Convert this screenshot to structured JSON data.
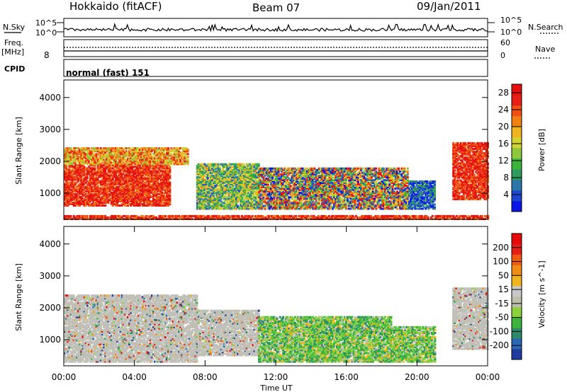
{
  "header": {
    "station": "Hokkaido (fitACF)",
    "beam": "Beam 07",
    "date": "09/Jan/2011"
  },
  "panel_labels": {
    "nsky": "N.Sky",
    "nsearch": "N.Search",
    "freq_line1": "Freq.",
    "freq_line2": "[MHz]",
    "nave": "Nave",
    "cpid": "CPID",
    "cpid_value": "normal (fast) 151"
  },
  "ticks": {
    "nsky_top": "10^5",
    "nsky_bottom": "10^0",
    "freq_left": "8",
    "nave_top": "60",
    "nave_bottom": "0"
  },
  "chart_data": [
    {
      "type": "heatmap",
      "name": "power",
      "xlabel": "",
      "ylabel": "Slant Range [km]",
      "x_range": [
        "00:00",
        "24:00"
      ],
      "ylim": [
        180,
        4550
      ],
      "y_ticks": [
        1000,
        2000,
        3000,
        4000
      ],
      "colorbar": {
        "label": "Power [dB]",
        "range": [
          0,
          30
        ],
        "ticks": [
          4,
          8,
          12,
          16,
          20,
          24,
          28
        ],
        "colors": [
          "#0a14e6",
          "#1e46d2",
          "#2a78a8",
          "#2e9a5e",
          "#3cb43c",
          "#8cc83c",
          "#d2d232",
          "#f0b41e",
          "#f08214",
          "#f05014",
          "#e61e14",
          "#e60f0f"
        ]
      },
      "regions": [
        {
          "t0": 0.0,
          "t1": 6.0,
          "r0": 600,
          "r1": 1900,
          "level": "high",
          "note": "strong red echoes"
        },
        {
          "t0": 0.0,
          "t1": 7.0,
          "r0": 1900,
          "r1": 2400,
          "level": "medium"
        },
        {
          "t0": 7.5,
          "t1": 11.0,
          "r0": 500,
          "r1": 1900,
          "level": "low-medium"
        },
        {
          "t0": 11.0,
          "t1": 19.5,
          "r0": 500,
          "r1": 1800,
          "level": "mixed",
          "note": "red band near 12:00–15:00"
        },
        {
          "t0": 19.5,
          "t1": 21.0,
          "r0": 500,
          "r1": 1400,
          "level": "low"
        },
        {
          "t0": 22.0,
          "t1": 24.0,
          "r0": 800,
          "r1": 2600,
          "level": "high"
        },
        {
          "t0": 0.0,
          "t1": 24.0,
          "r0": 180,
          "r1": 300,
          "level": "high",
          "note": "near-range ground scatter"
        }
      ]
    },
    {
      "type": "heatmap",
      "name": "velocity",
      "xlabel": "Time UT",
      "ylabel": "Slant Range [km]",
      "x_range": [
        "00:00",
        "24:00"
      ],
      "x_ticks": [
        "00:00",
        "04:00",
        "08:00",
        "12:00",
        "16:00",
        "20:00",
        "00:00"
      ],
      "ylim": [
        180,
        4550
      ],
      "y_ticks": [
        1000,
        2000,
        3000,
        4000
      ],
      "colorbar": {
        "label": "Velocity [m s^-1]",
        "ticks": [
          200,
          100,
          50,
          15,
          -15,
          -50,
          -100,
          -200
        ],
        "colors": [
          "#1e3ca0",
          "#2a66b4",
          "#2a8a6a",
          "#3cb43c",
          "#8cd23c",
          "#bebeaa",
          "#c8c8c8",
          "#f0b41e",
          "#f08c14",
          "#f05a14",
          "#e61e14",
          "#e60a0a"
        ]
      },
      "regions": [
        {
          "t0": 0.0,
          "t1": 7.5,
          "r0": 300,
          "r1": 2400,
          "level": "ground-scatter"
        },
        {
          "t0": 7.5,
          "t1": 11.0,
          "r0": 500,
          "r1": 1900,
          "level": "ground-scatter"
        },
        {
          "t0": 11.0,
          "t1": 18.5,
          "r0": 300,
          "r1": 1700,
          "level": "green"
        },
        {
          "t0": 18.5,
          "t1": 21.0,
          "r0": 300,
          "r1": 1400,
          "level": "green"
        },
        {
          "t0": 22.0,
          "t1": 24.0,
          "r0": 700,
          "r1": 2600,
          "level": "ground-scatter"
        }
      ]
    }
  ],
  "theme": {
    "frame": "#000000",
    "background": "#ffffff"
  }
}
